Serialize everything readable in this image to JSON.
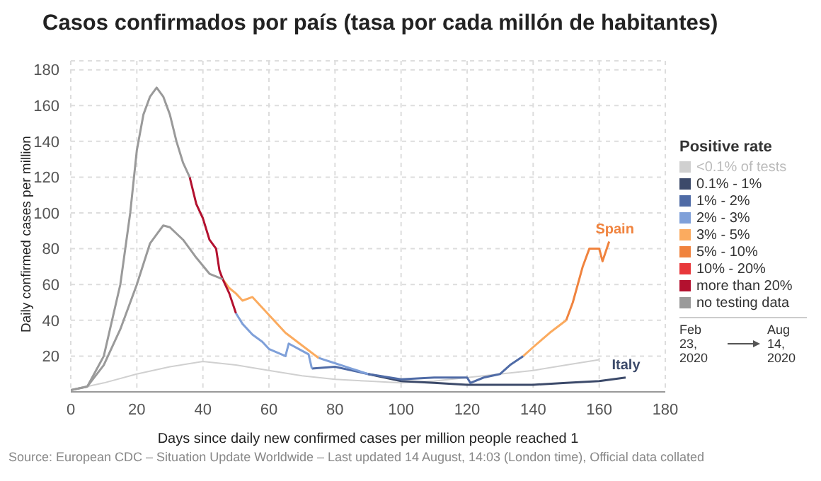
{
  "chart_data": {
    "type": "line",
    "title": "Casos confirmados por país (tasa por cada millón de habitantes)",
    "xlabel": "Days since daily new confirmed cases per million people reached 1",
    "ylabel": "Daily confirmed cases per million",
    "legend_title": "Positive rate",
    "legend": "right",
    "grid": true,
    "marker": "none",
    "line_style": "solid",
    "xlim": [
      0,
      180
    ],
    "xticks": [
      0,
      20,
      40,
      60,
      80,
      100,
      120,
      140,
      160,
      180
    ],
    "ylim": [
      0,
      185
    ],
    "yticks": [
      20,
      40,
      60,
      80,
      100,
      120,
      140,
      160,
      180
    ],
    "series": [
      {
        "name": "<0.1% of tests",
        "color": "#d0d0d0",
        "x": [
          0,
          10,
          20,
          30,
          40,
          50,
          60,
          70,
          80,
          90,
          100,
          110,
          120,
          130,
          140,
          150,
          160
        ],
        "values": [
          1,
          5,
          10,
          14,
          17,
          15,
          12,
          9,
          7,
          6,
          5,
          6,
          8,
          10,
          12,
          15,
          18
        ]
      },
      {
        "name": "0.1% - 1%",
        "color": "#3c4a6a",
        "x": [
          90,
          95,
          100,
          110,
          120,
          130,
          140,
          150,
          160,
          168
        ],
        "values": [
          10,
          8,
          6,
          5,
          4,
          4,
          4,
          5,
          6,
          8
        ]
      },
      {
        "name": "1% - 2%",
        "color": "#4f6ba6",
        "x": [
          73,
          80,
          90,
          100,
          110,
          120,
          121,
          125,
          130,
          133,
          137
        ],
        "values": [
          13,
          14,
          10,
          7,
          8,
          8,
          5,
          8,
          10,
          15,
          20
        ]
      },
      {
        "name": "2% - 3%",
        "color": "#7fa0d9",
        "x": [
          50,
          52,
          55,
          58,
          60,
          65,
          66,
          70,
          72,
          73,
          null,
          75,
          80,
          85,
          90
        ],
        "values": [
          44,
          38,
          32,
          28,
          24,
          20,
          27,
          23,
          21,
          13,
          null,
          19,
          16,
          13,
          10
        ]
      },
      {
        "name": "3% - 5%",
        "color": "#fbab5f",
        "x": [
          46,
          48,
          50,
          52,
          55,
          60,
          65,
          70,
          75,
          null,
          137,
          140,
          145,
          150
        ],
        "values": [
          63,
          58,
          55,
          51,
          53,
          43,
          33,
          26,
          19,
          null,
          20,
          25,
          33,
          40
        ]
      },
      {
        "name": "5% - 10%",
        "color": "#f0833e",
        "x": [
          150,
          152,
          155,
          157,
          160,
          161,
          163
        ],
        "values": [
          40,
          50,
          70,
          80,
          80,
          73,
          84
        ]
      },
      {
        "name": "10% - 20%",
        "color": "#e8383b"
      },
      {
        "name": "more than 20%",
        "color": "#b3112f",
        "x": [
          36,
          38,
          40,
          42,
          44,
          45,
          46,
          48,
          50
        ],
        "values": [
          120,
          105,
          97,
          85,
          80,
          68,
          63,
          55,
          44
        ]
      },
      {
        "name": "no testing data",
        "color": "#9a9a9a",
        "x": [
          0,
          5,
          10,
          15,
          18,
          20,
          22,
          24,
          26,
          28,
          30,
          32,
          34,
          36,
          null,
          0,
          5,
          10,
          15,
          20,
          24,
          26,
          28,
          30,
          34,
          38,
          42,
          46
        ],
        "values": [
          1,
          3,
          20,
          60,
          100,
          135,
          155,
          165,
          170,
          165,
          155,
          140,
          128,
          120,
          null,
          1,
          3,
          15,
          35,
          60,
          83,
          88,
          93,
          92,
          85,
          75,
          66,
          63
        ]
      }
    ],
    "annotations": [
      {
        "text": "Spain",
        "x": 163,
        "y": 84
      },
      {
        "text": "Italy",
        "x": 168,
        "y": 8
      },
      "Feb 23, 2020",
      "Aug 14, 2020",
      "Source: European CDC – Situation Update Worldwide – Last updated 14 August, 14:03 (London time), Official data collated"
    ]
  }
}
